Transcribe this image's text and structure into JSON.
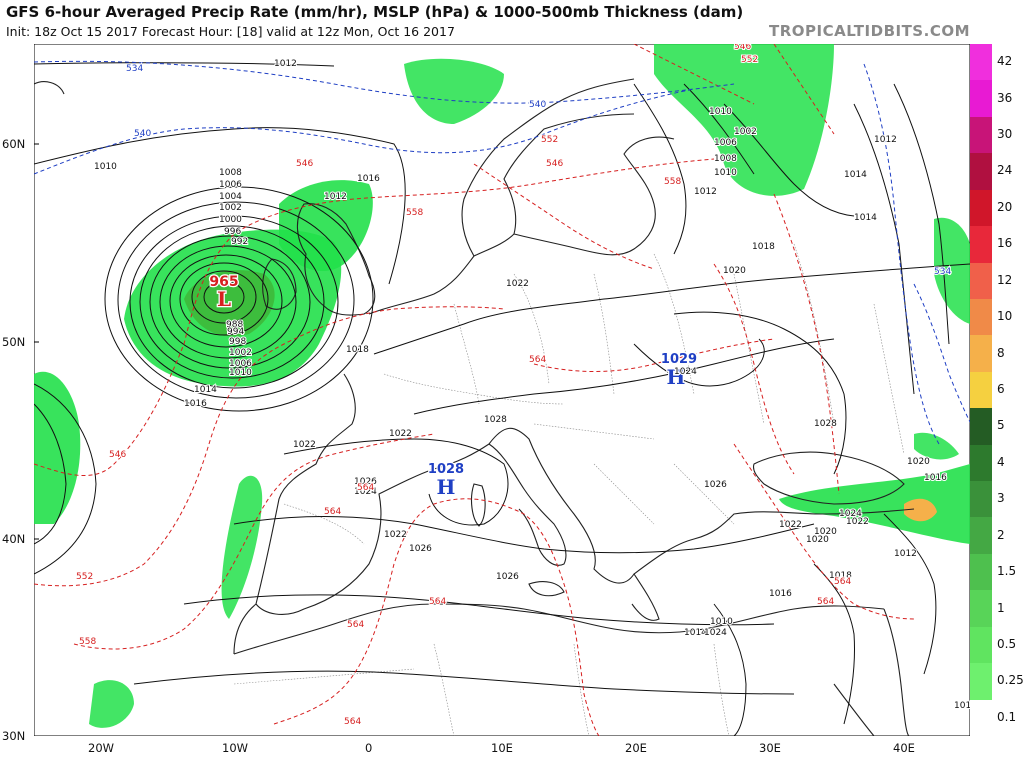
{
  "header": {
    "title": "GFS 6-hour Averaged Precip Rate (mm/hr), MSLP (hPa) & 1000-500mb Thickness (dam)",
    "subtitle": "Init: 18z Oct 15 2017   Forecast Hour: [18]   valid at 12z Mon, Oct 16 2017",
    "brand": "TROPICALTIDBITS.COM"
  },
  "axes": {
    "lat_labels": [
      "60N",
      "50N",
      "40N",
      "30N"
    ],
    "lon_labels": [
      "20W",
      "10W",
      "0",
      "10E",
      "20E",
      "30E",
      "40E"
    ]
  },
  "pressure_centers": [
    {
      "type": "L",
      "value": "965",
      "color": "#d62020"
    },
    {
      "type": "H",
      "value": "1028",
      "color": "#1f3fc4"
    },
    {
      "type": "H",
      "value": "1029",
      "color": "#1f3fc4"
    }
  ],
  "isobar_labels": [
    "1012",
    "1010",
    "1008",
    "1006",
    "1004",
    "1002",
    "1000",
    "996",
    "992",
    "988",
    "994",
    "998",
    "1002",
    "1006",
    "1010",
    "1014",
    "1016",
    "1012",
    "1018",
    "1022",
    "1022",
    "1024",
    "1026",
    "1028",
    "1026",
    "1026",
    "1024",
    "1022",
    "1020",
    "1018",
    "1016",
    "1014",
    "1010",
    "1020",
    "1022",
    "1024",
    "1022",
    "1026",
    "1028",
    "1024",
    "1022",
    "1012",
    "1020",
    "1016",
    "1010",
    "1014",
    "1012",
    "1016",
    "1018",
    "1020",
    "1010",
    "1006",
    "1002",
    "1008",
    "1010",
    "1012",
    "1014"
  ],
  "thickness_labels": [
    "534",
    "540",
    "546",
    "552",
    "558",
    "564",
    "564",
    "564",
    "546",
    "552",
    "558",
    "564",
    "564",
    "564",
    "546",
    "552",
    "558",
    "564",
    "564",
    "534",
    "540",
    "546"
  ],
  "colorbar": {
    "labels": [
      "42",
      "36",
      "30",
      "24",
      "20",
      "16",
      "12",
      "10",
      "8",
      "6",
      "5",
      "4",
      "3",
      "2",
      "1.5",
      "1",
      "0.5",
      "0.25",
      "0.1"
    ],
    "colors": [
      "#f02fdd",
      "#e81ad3",
      "#c81478",
      "#b01040",
      "#d0162a",
      "#e8283a",
      "#f0604a",
      "#f08a48",
      "#f5b04a",
      "#f5d040",
      "#245c24",
      "#2d7a2d",
      "#3a913a",
      "#44a844",
      "#4ec04e",
      "#58d458",
      "#60e460",
      "#6ef06e",
      "#ffffff"
    ]
  }
}
